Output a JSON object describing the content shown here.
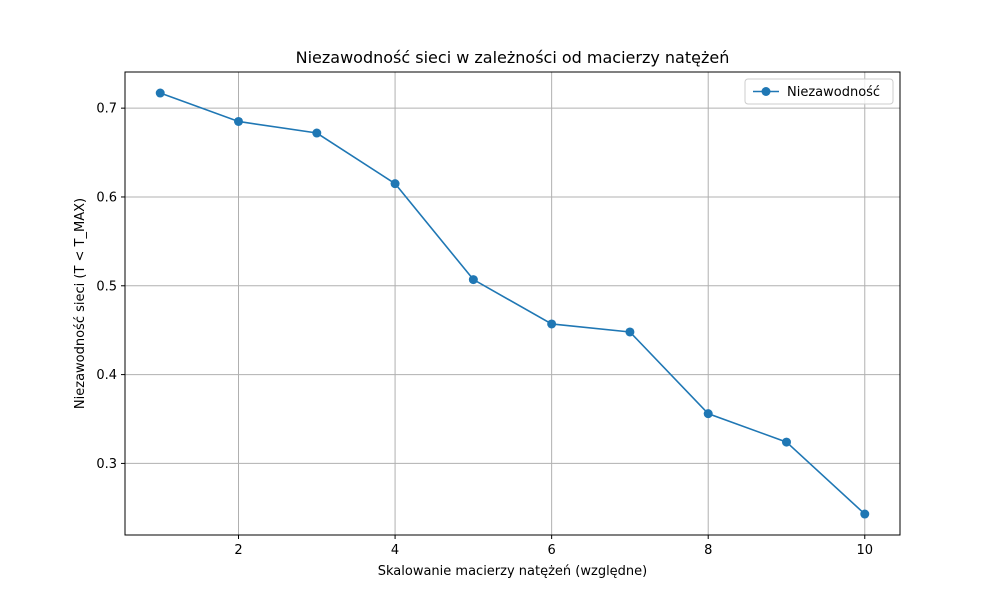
{
  "chart_data": {
    "type": "line",
    "title": "Niezawodność sieci w zależności od macierzy natężeń",
    "xlabel": "Skalowanie macierzy natężeń (względne)",
    "ylabel": "Niezawodność sieci (T < T_MAX)",
    "x": [
      1,
      2,
      3,
      4,
      5,
      6,
      7,
      8,
      9,
      10
    ],
    "series": [
      {
        "name": "Niezawodność",
        "values": [
          0.717,
          0.685,
          0.672,
          0.615,
          0.507,
          0.457,
          0.448,
          0.356,
          0.324,
          0.243
        ]
      }
    ],
    "xlim": [
      0.55,
      10.45
    ],
    "ylim": [
      0.2194,
      0.7407
    ],
    "xticks": [
      "2",
      "4",
      "6",
      "8",
      "10"
    ],
    "xtick_values": [
      2,
      4,
      6,
      8,
      10
    ],
    "yticks": [
      "0.3",
      "0.4",
      "0.5",
      "0.6",
      "0.7"
    ],
    "ytick_values": [
      0.3,
      0.4,
      0.5,
      0.6,
      0.7
    ],
    "grid": true,
    "legend_position": "top-right",
    "colors": {
      "series": "#1f77b4",
      "grid": "#b0b0b0",
      "axis": "#000000"
    }
  }
}
